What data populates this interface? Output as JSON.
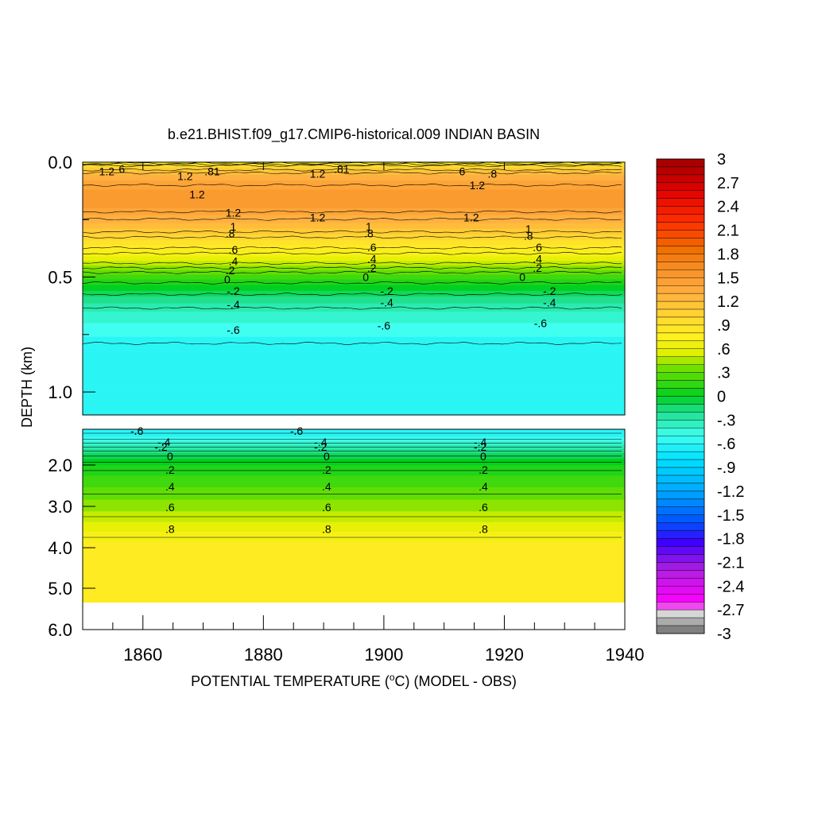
{
  "chart_data": {
    "type": "heatmap",
    "title": "b.e21.BHIST.f09_g17.CMIP6-historical.009 INDIAN BASIN",
    "xlabel": "POTENTIAL TEMPERATURE (°C) (MODEL - OBS)",
    "xlabel_parts": {
      "prefix": "POTENTIAL TEMPERATURE (",
      "sup": "o",
      "suffix": "C) (MODEL - OBS)"
    },
    "ylabel": "DEPTH (km)",
    "xlim": [
      1850,
      1940
    ],
    "x_ticks": [
      "1860",
      "1880",
      "1900",
      "1920",
      "1940"
    ],
    "upper_panel": {
      "ylim": [
        0.0,
        1.1
      ],
      "y_ticks": [
        "0.0",
        "0.5",
        "1.0"
      ]
    },
    "lower_panel": {
      "ylim": [
        1.1,
        6.0
      ],
      "y_ticks": [
        "2.0",
        "3.0",
        "4.0",
        "5.0",
        "6.0"
      ]
    },
    "colorbar": {
      "range": [
        -3,
        3
      ],
      "step": 0.1,
      "labels": [
        "3",
        "2.7",
        "2.4",
        "2.1",
        "1.8",
        "1.5",
        "1.2",
        ".9",
        ".6",
        ".3",
        "0",
        "-.3",
        "-.6",
        "-.9",
        "-1.2",
        "-1.5",
        "-1.8",
        "-2.1",
        "-2.4",
        "-2.7",
        "-3"
      ]
    },
    "profile_upper": [
      {
        "depth": 0.0,
        "value": 0.6
      },
      {
        "depth": 0.02,
        "value": 1.0
      },
      {
        "depth": 0.06,
        "value": 1.3
      },
      {
        "depth": 0.12,
        "value": 1.45
      },
      {
        "depth": 0.2,
        "value": 1.45
      },
      {
        "depth": 0.28,
        "value": 1.2
      },
      {
        "depth": 0.35,
        "value": 0.9
      },
      {
        "depth": 0.42,
        "value": 0.6
      },
      {
        "depth": 0.5,
        "value": 0.2
      },
      {
        "depth": 0.55,
        "value": 0.0
      },
      {
        "depth": 0.6,
        "value": -0.2
      },
      {
        "depth": 0.67,
        "value": -0.4
      },
      {
        "depth": 0.73,
        "value": -0.5
      },
      {
        "depth": 0.8,
        "value": -0.62
      },
      {
        "depth": 1.1,
        "value": -0.65
      }
    ],
    "profile_lower": [
      {
        "depth": 1.1,
        "value": -0.65
      },
      {
        "depth": 1.3,
        "value": -0.55
      },
      {
        "depth": 1.5,
        "value": -0.35
      },
      {
        "depth": 1.7,
        "value": -0.15
      },
      {
        "depth": 2.0,
        "value": 0.05
      },
      {
        "depth": 2.4,
        "value": 0.2
      },
      {
        "depth": 3.0,
        "value": 0.4
      },
      {
        "depth": 3.5,
        "value": 0.6
      },
      {
        "depth": 4.0,
        "value": 0.8
      },
      {
        "depth": 5.4,
        "value": 0.85
      }
    ],
    "contour_labels_upper": [
      {
        "x": 1854,
        "depth": 0.04,
        "text": "1.2"
      },
      {
        "x": 1856.5,
        "depth": 0.03,
        "text": "6"
      },
      {
        "x": 1867,
        "depth": 0.06,
        "text": "1.2"
      },
      {
        "x": 1869,
        "depth": 0.14,
        "text": "1.2"
      },
      {
        "x": 1871.5,
        "depth": 0.04,
        "text": ".81"
      },
      {
        "x": 1875,
        "depth": 0.22,
        "text": "1.2"
      },
      {
        "x": 1875,
        "depth": 0.28,
        "text": "1"
      },
      {
        "x": 1874.5,
        "depth": 0.31,
        "text": ".8"
      },
      {
        "x": 1875,
        "depth": 0.38,
        "text": ".6"
      },
      {
        "x": 1875,
        "depth": 0.43,
        "text": ".4"
      },
      {
        "x": 1874.5,
        "depth": 0.47,
        "text": ".2"
      },
      {
        "x": 1874,
        "depth": 0.51,
        "text": "0"
      },
      {
        "x": 1875,
        "depth": 0.56,
        "text": "-.2"
      },
      {
        "x": 1875,
        "depth": 0.62,
        "text": "-.4"
      },
      {
        "x": 1875,
        "depth": 0.73,
        "text": "-.6"
      },
      {
        "x": 1889,
        "depth": 0.05,
        "text": "1.2"
      },
      {
        "x": 1893,
        "depth": 0.03,
        "text": ".81"
      },
      {
        "x": 1889,
        "depth": 0.24,
        "text": "1.2"
      },
      {
        "x": 1897.5,
        "depth": 0.28,
        "text": "1"
      },
      {
        "x": 1897.5,
        "depth": 0.31,
        "text": ".8"
      },
      {
        "x": 1898,
        "depth": 0.37,
        "text": ".6"
      },
      {
        "x": 1898,
        "depth": 0.42,
        "text": ".4"
      },
      {
        "x": 1898,
        "depth": 0.46,
        "text": ".2"
      },
      {
        "x": 1897,
        "depth": 0.5,
        "text": "0"
      },
      {
        "x": 1900.5,
        "depth": 0.56,
        "text": "-.2"
      },
      {
        "x": 1900.5,
        "depth": 0.61,
        "text": "-.4"
      },
      {
        "x": 1900,
        "depth": 0.71,
        "text": "-.6"
      },
      {
        "x": 1913,
        "depth": 0.04,
        "text": "6"
      },
      {
        "x": 1918,
        "depth": 0.05,
        "text": ".8"
      },
      {
        "x": 1915.5,
        "depth": 0.1,
        "text": "1.2"
      },
      {
        "x": 1914.5,
        "depth": 0.24,
        "text": "1.2"
      },
      {
        "x": 1924,
        "depth": 0.29,
        "text": "1"
      },
      {
        "x": 1924,
        "depth": 0.32,
        "text": ".8"
      },
      {
        "x": 1925.5,
        "depth": 0.37,
        "text": ".6"
      },
      {
        "x": 1925.5,
        "depth": 0.42,
        "text": ".4"
      },
      {
        "x": 1925.5,
        "depth": 0.46,
        "text": ".2"
      },
      {
        "x": 1923,
        "depth": 0.5,
        "text": "0"
      },
      {
        "x": 1927.5,
        "depth": 0.56,
        "text": "-.2"
      },
      {
        "x": 1927.5,
        "depth": 0.61,
        "text": "-.4"
      },
      {
        "x": 1926,
        "depth": 0.7,
        "text": "-.6"
      }
    ],
    "contour_labels_lower": [
      {
        "x": 1859,
        "depth": 1.14,
        "text": "-.6"
      },
      {
        "x": 1863.5,
        "depth": 1.42,
        "text": "-.4"
      },
      {
        "x": 1863,
        "depth": 1.54,
        "text": "-.2"
      },
      {
        "x": 1864.5,
        "depth": 1.78,
        "text": "0"
      },
      {
        "x": 1864.5,
        "depth": 2.12,
        "text": ".2"
      },
      {
        "x": 1864.5,
        "depth": 2.52,
        "text": ".4"
      },
      {
        "x": 1864.5,
        "depth": 3.02,
        "text": ".6"
      },
      {
        "x": 1864.5,
        "depth": 3.55,
        "text": ".8"
      },
      {
        "x": 1885.5,
        "depth": 1.14,
        "text": "-.6"
      },
      {
        "x": 1889.5,
        "depth": 1.42,
        "text": "-.4"
      },
      {
        "x": 1889.5,
        "depth": 1.54,
        "text": "-.2"
      },
      {
        "x": 1890.5,
        "depth": 1.78,
        "text": "0"
      },
      {
        "x": 1890.5,
        "depth": 2.12,
        "text": ".2"
      },
      {
        "x": 1890.5,
        "depth": 2.52,
        "text": ".4"
      },
      {
        "x": 1890.5,
        "depth": 3.02,
        "text": ".6"
      },
      {
        "x": 1890.5,
        "depth": 3.55,
        "text": ".8"
      },
      {
        "x": 1916,
        "depth": 1.42,
        "text": "-.4"
      },
      {
        "x": 1916,
        "depth": 1.54,
        "text": "-.2"
      },
      {
        "x": 1916.5,
        "depth": 1.78,
        "text": "0"
      },
      {
        "x": 1916.5,
        "depth": 2.12,
        "text": ".2"
      },
      {
        "x": 1916.5,
        "depth": 2.52,
        "text": ".4"
      },
      {
        "x": 1916.5,
        "depth": 3.02,
        "text": ".6"
      },
      {
        "x": 1916.5,
        "depth": 3.55,
        "text": ".8"
      }
    ]
  }
}
